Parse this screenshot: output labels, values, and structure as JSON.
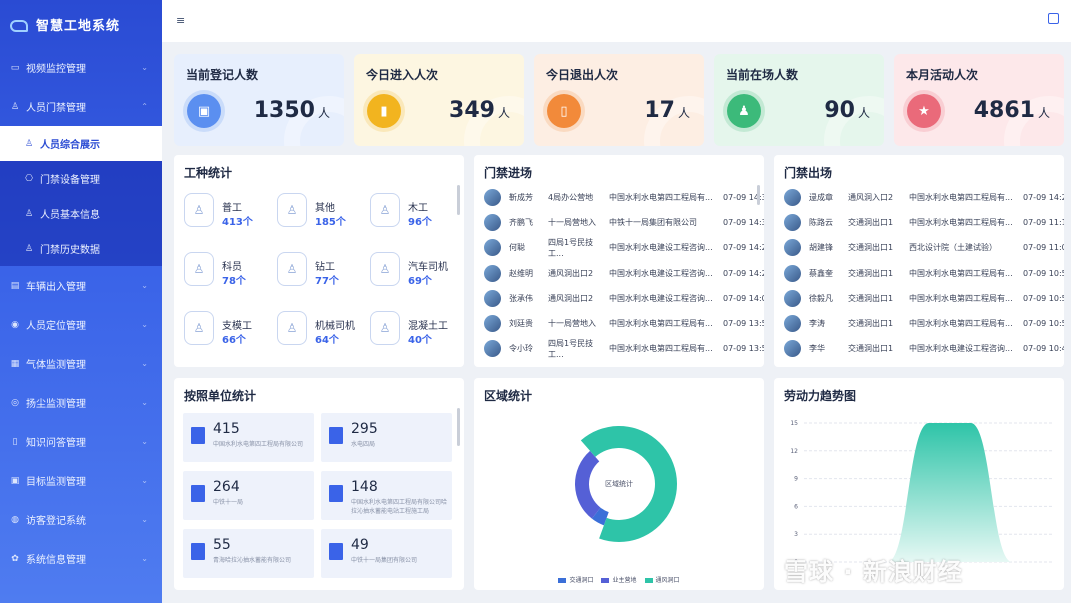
{
  "app": {
    "title": "智慧工地系统"
  },
  "sidebar": {
    "items": [
      {
        "label": "视频监控管理",
        "icon": "video-icon"
      },
      {
        "label": "人员门禁管理",
        "icon": "person-icon"
      },
      {
        "label": "人员综合展示",
        "icon": "person-icon",
        "active": true
      },
      {
        "label": "门禁设备管理",
        "icon": "device-icon"
      },
      {
        "label": "人员基本信息",
        "icon": "person-icon"
      },
      {
        "label": "门禁历史数据",
        "icon": "person-icon"
      },
      {
        "label": "车辆出入管理",
        "icon": "car-icon"
      },
      {
        "label": "人员定位管理",
        "icon": "location-icon"
      },
      {
        "label": "气体监测管理",
        "icon": "gas-icon"
      },
      {
        "label": "扬尘监测管理",
        "icon": "dust-icon"
      },
      {
        "label": "知识问答管理",
        "icon": "book-icon"
      },
      {
        "label": "目标监测管理",
        "icon": "target-icon"
      },
      {
        "label": "访客登记系统",
        "icon": "visitor-icon"
      },
      {
        "label": "系统信息管理",
        "icon": "gear-icon"
      }
    ]
  },
  "stats": [
    {
      "title": "当前登记人数",
      "value": "1350",
      "unit": "人",
      "color": "#5b8ff0",
      "bg": "#e7effd"
    },
    {
      "title": "今日进入人次",
      "value": "349",
      "unit": "人",
      "color": "#f2b41f",
      "bg": "#fdf6e1"
    },
    {
      "title": "今日退出人次",
      "value": "17",
      "unit": "人",
      "color": "#f28a3a",
      "bg": "#fdeee3"
    },
    {
      "title": "当前在场人数",
      "value": "90",
      "unit": "人",
      "color": "#3cba7a",
      "bg": "#e5f6ec"
    },
    {
      "title": "本月活动人次",
      "value": "4861",
      "unit": "人",
      "color": "#ea6a7a",
      "bg": "#fde8ea"
    }
  ],
  "worker_types": {
    "title": "工种统计",
    "items": [
      {
        "name": "普工",
        "count": "413个"
      },
      {
        "name": "其他",
        "count": "185个"
      },
      {
        "name": "木工",
        "count": "96个"
      },
      {
        "name": "科员",
        "count": "78个"
      },
      {
        "name": "钻工",
        "count": "77个"
      },
      {
        "name": "汽车司机",
        "count": "69个"
      },
      {
        "name": "支模工",
        "count": "66个"
      },
      {
        "name": "机械司机",
        "count": "64个"
      },
      {
        "name": "混凝土工",
        "count": "40个"
      }
    ]
  },
  "gate_in": {
    "title": "门禁进场",
    "rows": [
      {
        "name": "靳成芳",
        "gate": "4局办公营地",
        "unit": "中国水利水电第四工程局有...",
        "time": "07-09 14:35"
      },
      {
        "name": "齐鹏飞",
        "gate": "十一局营地入",
        "unit": "中铁十一局集团有限公司",
        "time": "07-09 14:31"
      },
      {
        "name": "何聪",
        "gate": "四局1号民技工...",
        "unit": "中国水利水电建设工程咨询...",
        "time": "07-09 14:25"
      },
      {
        "name": "赵维明",
        "gate": "通风洞出口2",
        "unit": "中国水利水电建设工程咨询...",
        "time": "07-09 14:22"
      },
      {
        "name": "张承伟",
        "gate": "通风洞出口2",
        "unit": "中国水利水电建设工程咨询...",
        "time": "07-09 14:09"
      },
      {
        "name": "刘廷贵",
        "gate": "十一局营地入",
        "unit": "中国水利水电第四工程局有...",
        "time": "07-09 13:58"
      },
      {
        "name": "令小玲",
        "gate": "四局1号民技工...",
        "unit": "中国水利水电第四工程局有...",
        "time": "07-09 13:56"
      }
    ]
  },
  "gate_out": {
    "title": "门禁出场",
    "rows": [
      {
        "name": "逯成章",
        "gate": "通风洞入口2",
        "unit": "中国水利水电第四工程局有...",
        "time": "07-09 14:26"
      },
      {
        "name": "陈路云",
        "gate": "交通洞出口1",
        "unit": "中国水利水电第四工程局有...",
        "time": "07-09 11:19"
      },
      {
        "name": "胡建锋",
        "gate": "交通洞出口1",
        "unit": "西北设计院（土建试验）",
        "time": "07-09 11:06"
      },
      {
        "name": "蔡鑫奎",
        "gate": "交通洞出口1",
        "unit": "中国水利水电第四工程局有...",
        "time": "07-09 10:50"
      },
      {
        "name": "徐毅凡",
        "gate": "交通洞出口1",
        "unit": "中国水利水电第四工程局有...",
        "time": "07-09 10:50"
      },
      {
        "name": "李涛",
        "gate": "交通洞出口1",
        "unit": "中国水利水电第四工程局有...",
        "time": "07-09 10:50"
      },
      {
        "name": "李华",
        "gate": "交通洞出口1",
        "unit": "中国水利水电建设工程咨询...",
        "time": "07-09 10:40"
      }
    ]
  },
  "units": {
    "title": "按照单位统计",
    "items": [
      {
        "value": "415",
        "name": "中国水利水电第四工程局有限公司"
      },
      {
        "value": "295",
        "name": "水电四局"
      },
      {
        "value": "264",
        "name": "中铁十一局"
      },
      {
        "value": "148",
        "name": "中国水利水电第四工程局有限公司哈拉沁抽水蓄能电站工程施工局"
      },
      {
        "value": "55",
        "name": "青海哈拉沁抽水蓄能有限公司"
      },
      {
        "value": "49",
        "name": "中铁十一局集团有限公司"
      }
    ]
  },
  "region": {
    "title": "区域统计",
    "center_label": "区域统计",
    "legend": [
      {
        "name": "交通洞口",
        "color": "#3b6fd8"
      },
      {
        "name": "业主营地",
        "color": "#5560d6"
      },
      {
        "name": "通风洞口",
        "color": "#2ec4a8"
      }
    ]
  },
  "trend": {
    "title": "劳动力趋势图"
  },
  "chart_data": [
    {
      "type": "pie",
      "title": "区域统计",
      "categories": [
        "交通洞口",
        "业主营地",
        "通风洞口"
      ],
      "values": [
        5,
        28,
        67
      ]
    },
    {
      "type": "area",
      "title": "劳动力趋势图",
      "ylim": [
        0,
        15
      ],
      "yticks": [
        0,
        3,
        6,
        9,
        12,
        15
      ],
      "x": [
        0,
        1,
        2,
        3,
        4,
        5,
        6
      ],
      "values": [
        0,
        0,
        0,
        15,
        15,
        0,
        0
      ]
    }
  ],
  "watermark": "雪球 · 新浪财经"
}
